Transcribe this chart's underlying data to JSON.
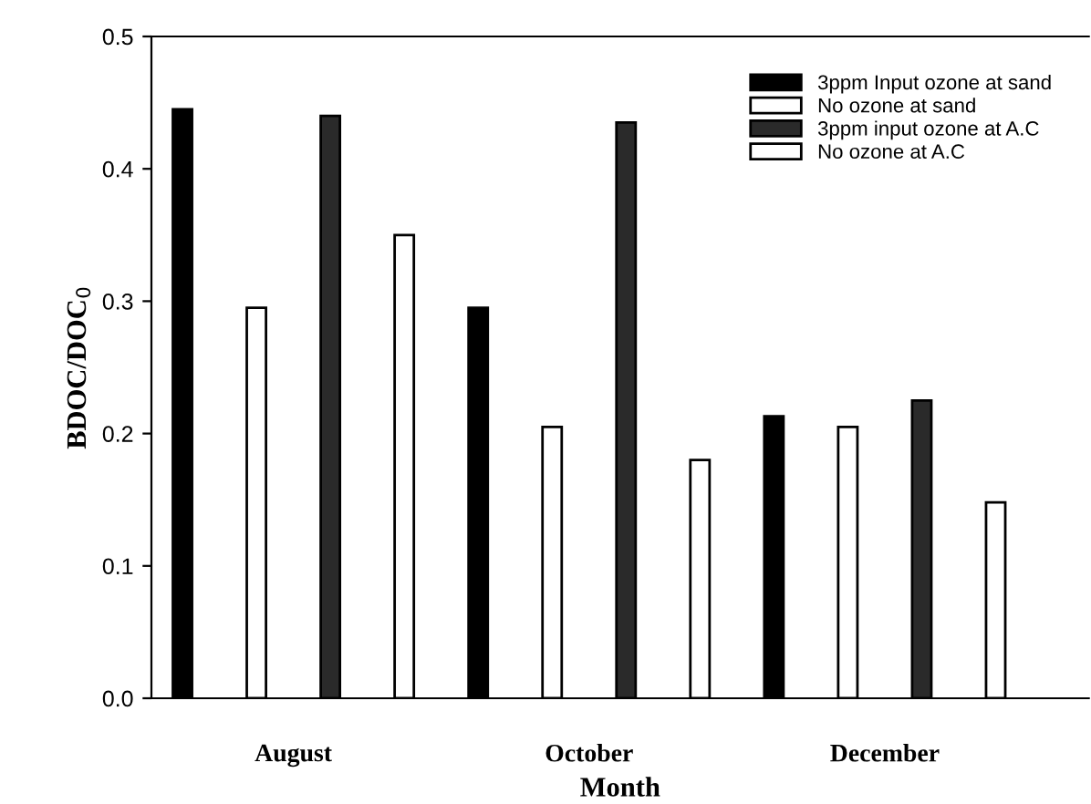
{
  "chart_data": {
    "type": "bar",
    "xlabel": "Month",
    "ylabel": "BDOC/DOC$_{0}$",
    "categories": [
      "August",
      "October",
      "December"
    ],
    "series": [
      {
        "name": "3ppm Input ozone at sand",
        "color": "#000000",
        "values": [
          0.445,
          0.295,
          0.213
        ]
      },
      {
        "name": "No ozone at sand",
        "color": "#ffffff",
        "values": [
          0.295,
          0.205,
          0.205
        ]
      },
      {
        "name": "3ppm input ozone at A.C",
        "color": "#2a2a2a",
        "values": [
          0.44,
          0.435,
          0.225
        ]
      },
      {
        "name": "No ozone at A.C",
        "color": "#ffffff",
        "values": [
          0.35,
          0.18,
          0.148
        ]
      }
    ],
    "ylim": [
      0,
      0.5
    ],
    "yticks": [
      {
        "value": 0,
        "label": "0.0"
      },
      0.1,
      0.2,
      0.3,
      0.4,
      0.5
    ],
    "grid": false,
    "legend": "top right"
  }
}
